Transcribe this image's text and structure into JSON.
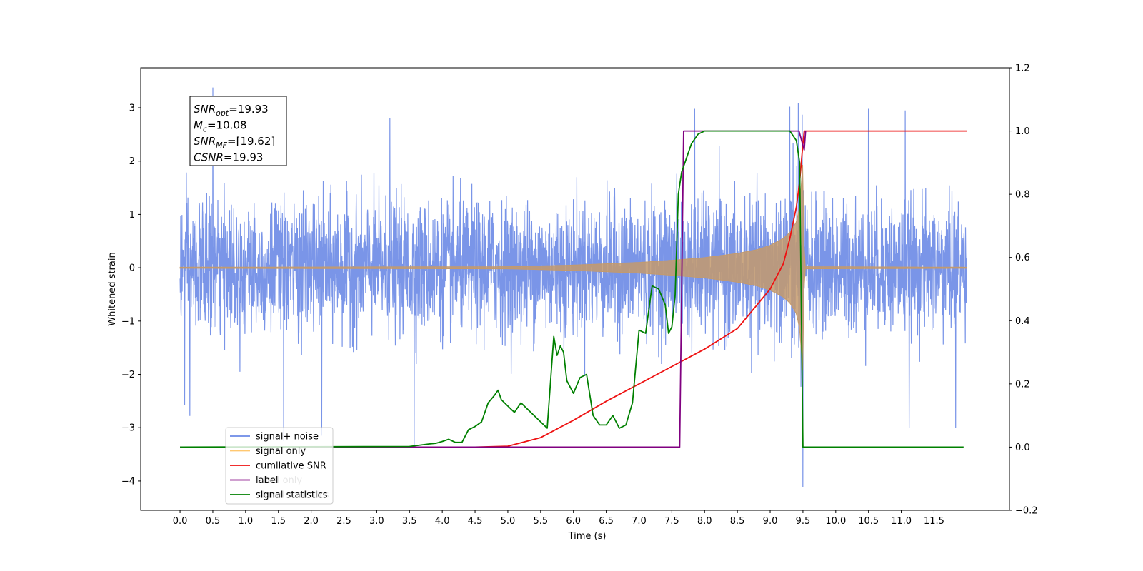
{
  "chart_data": {
    "type": "line",
    "xlabel": "Time (s)",
    "ylabel_left": "Whitened strain",
    "ylabel_right": "",
    "xlim": [
      -0.6,
      12.65
    ],
    "ylim_left": [
      -4.55,
      3.75
    ],
    "ylim_right": [
      -0.2,
      1.2
    ],
    "x_ticks": [
      0.0,
      0.5,
      1.0,
      1.5,
      2.0,
      2.5,
      3.0,
      3.5,
      4.0,
      4.5,
      5.0,
      5.5,
      6.0,
      6.5,
      7.0,
      7.5,
      8.0,
      8.5,
      9.0,
      9.5,
      10.0,
      10.5,
      11.0,
      11.5
    ],
    "x_tick_labels": [
      "0.0",
      "0.5",
      "1.0",
      "1.5",
      "2.0",
      "2.5",
      "3.0",
      "3.5",
      "4.0",
      "4.5",
      "5.0",
      "5.5",
      "6.0",
      "6.5",
      "7.0",
      "7.5",
      "8.0",
      "8.5",
      "9.0",
      "9.5",
      "10.0",
      "10.5",
      "11.0",
      "11.5"
    ],
    "y_left_ticks": [
      3,
      2,
      1,
      0,
      -1,
      -2,
      -3,
      -4
    ],
    "y_left_tick_labels": [
      "3",
      "2",
      "1",
      "0",
      "−1",
      "−2",
      "−3",
      "−4"
    ],
    "y_right_ticks": [
      1.2,
      1.0,
      0.8,
      0.6,
      0.4,
      0.2,
      0.0,
      -0.2
    ],
    "y_right_tick_labels": [
      "1.2",
      "1.0",
      "0.8",
      "0.6",
      "0.4",
      "0.2",
      "0.0",
      "−0.2"
    ],
    "annotation": {
      "lines": [
        {
          "main": "SNR",
          "sub": "opt",
          "rest": "=19.93"
        },
        {
          "main": "M",
          "sub": "c",
          "rest": "=10.08"
        },
        {
          "main": "SNR",
          "sub": "MF",
          "rest": "=[19.62]"
        },
        {
          "main": "CSNR",
          "sub": "",
          "rest": "=19.93"
        }
      ]
    },
    "legend": {
      "placement": "lower-left",
      "entries": [
        "signal+ noise",
        "signal only",
        "cumilative SNR",
        "label",
        "signal statistics"
      ],
      "ghost_entries": [
        "",
        "",
        "",
        "label only",
        "signal statistics"
      ]
    },
    "series": [
      {
        "name": "signal+ noise",
        "axis": "left",
        "color": "#6b8ae6",
        "kind": "noise",
        "x_range": [
          0.0,
          12.0
        ],
        "typical_envelope": [
          -1.6,
          1.9
        ],
        "spikes": [
          {
            "x": 0.5,
            "y": 3.38
          },
          {
            "x": 3.2,
            "y": 2.8
          },
          {
            "x": 7.85,
            "y": 2.98
          },
          {
            "x": 9.3,
            "y": 3.02
          },
          {
            "x": 9.43,
            "y": 3.08
          },
          {
            "x": 10.5,
            "y": 2.98
          },
          {
            "x": 11.06,
            "y": 2.95
          },
          {
            "x": 1.58,
            "y": -3.25
          },
          {
            "x": 2.16,
            "y": -3.15
          },
          {
            "x": 3.57,
            "y": -3.35
          },
          {
            "x": 9.5,
            "y": -4.12
          },
          {
            "x": 11.12,
            "y": -3.0
          },
          {
            "x": 11.83,
            "y": -3.0
          },
          {
            "x": 0.07,
            "y": -2.58
          },
          {
            "x": 0.15,
            "y": -2.78
          }
        ]
      },
      {
        "name": "signal only",
        "axis": "left",
        "color": "#c49a6c",
        "kind": "chirp",
        "x": [
          0.0,
          5.0,
          6.0,
          7.0,
          7.5,
          8.0,
          8.5,
          8.8,
          9.0,
          9.2,
          9.3,
          9.4,
          9.45,
          9.5,
          9.52,
          12.0
        ],
        "amplitude": [
          0.01,
          0.02,
          0.05,
          0.1,
          0.14,
          0.19,
          0.27,
          0.34,
          0.42,
          0.55,
          0.66,
          0.86,
          1.15,
          2.0,
          0.02,
          0.01
        ]
      },
      {
        "name": "cumilative SNR",
        "axis": "right",
        "color": "#ee1111",
        "x": [
          0.0,
          4.5,
          5.0,
          5.5,
          6.0,
          6.5,
          7.0,
          7.5,
          8.0,
          8.5,
          9.0,
          9.2,
          9.3,
          9.4,
          9.45,
          9.5,
          9.52,
          12.0
        ],
        "y": [
          0.0,
          0.0,
          0.003,
          0.03,
          0.085,
          0.145,
          0.2,
          0.255,
          0.31,
          0.375,
          0.5,
          0.58,
          0.66,
          0.76,
          0.84,
          0.96,
          1.0,
          1.0
        ]
      },
      {
        "name": "label",
        "axis": "right",
        "color": "#800080",
        "x": [
          0.0,
          7.62,
          7.68,
          9.44,
          9.52,
          9.54
        ],
        "y": [
          0.0,
          0.0,
          1.0,
          1.0,
          0.94,
          1.0
        ]
      },
      {
        "name": "signal statistics",
        "axis": "right",
        "color": "#008000",
        "x": [
          0.0,
          3.5,
          3.8,
          3.9,
          4.0,
          4.1,
          4.2,
          4.3,
          4.4,
          4.5,
          4.6,
          4.7,
          4.8,
          4.85,
          4.9,
          5.0,
          5.1,
          5.2,
          5.3,
          5.4,
          5.5,
          5.6,
          5.7,
          5.75,
          5.8,
          5.85,
          5.9,
          6.0,
          6.1,
          6.2,
          6.3,
          6.4,
          6.5,
          6.6,
          6.7,
          6.8,
          6.9,
          7.0,
          7.1,
          7.2,
          7.3,
          7.4,
          7.45,
          7.5,
          7.55,
          7.6,
          7.65,
          7.7,
          7.75,
          7.8,
          7.9,
          8.0,
          8.1,
          8.2,
          8.3,
          8.5,
          9.0,
          9.3,
          9.4,
          9.45,
          9.5,
          9.55,
          9.57,
          11.95
        ],
        "y": [
          0.0,
          0.002,
          0.01,
          0.012,
          0.018,
          0.025,
          0.015,
          0.015,
          0.055,
          0.065,
          0.08,
          0.14,
          0.165,
          0.18,
          0.15,
          0.13,
          0.11,
          0.14,
          0.12,
          0.1,
          0.08,
          0.06,
          0.35,
          0.29,
          0.32,
          0.3,
          0.21,
          0.17,
          0.22,
          0.23,
          0.1,
          0.07,
          0.07,
          0.1,
          0.06,
          0.07,
          0.14,
          0.37,
          0.36,
          0.51,
          0.5,
          0.45,
          0.36,
          0.38,
          0.48,
          0.8,
          0.87,
          0.9,
          0.93,
          0.96,
          0.99,
          1.0,
          1.0,
          1.0,
          1.0,
          1.0,
          1.0,
          1.0,
          0.97,
          0.9,
          0.0,
          0.0,
          0.0,
          0.0
        ]
      }
    ]
  }
}
